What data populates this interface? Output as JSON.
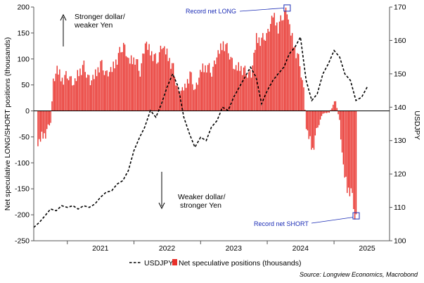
{
  "chart_data": {
    "type": "bar+line",
    "left_axis": {
      "label": "Net speculative LONG/SHORT positions (thousands)",
      "ylim": [
        -250,
        200
      ],
      "ticks": [
        -250,
        -200,
        -150,
        -100,
        -50,
        0,
        50,
        100,
        150,
        200
      ]
    },
    "right_axis": {
      "label": "USDJPY",
      "ylim": [
        100,
        170
      ],
      "ticks": [
        100,
        110,
        120,
        130,
        140,
        150,
        160,
        170
      ]
    },
    "x_axis": {
      "range": [
        "2020-07-01",
        "2025-11-01"
      ],
      "tick_labels": [
        "2021",
        "2022",
        "2023",
        "2024",
        "2025"
      ]
    },
    "grid": false,
    "bar_series": {
      "name": "Net speculative positions (thousands)",
      "color": "#e8302a",
      "anchors": [
        [
          "2020-07-24",
          -68
        ],
        [
          "2020-08-14",
          -48
        ],
        [
          "2020-09-04",
          -45
        ],
        [
          "2020-10-02",
          -20
        ],
        [
          "2020-10-16",
          55
        ],
        [
          "2020-11-06",
          80
        ],
        [
          "2020-12-04",
          60
        ],
        [
          "2021-01-08",
          68
        ],
        [
          "2021-02-05",
          50
        ],
        [
          "2021-03-05",
          75
        ],
        [
          "2021-04-02",
          85
        ],
        [
          "2021-05-07",
          55
        ],
        [
          "2021-06-04",
          70
        ],
        [
          "2021-07-02",
          90
        ],
        [
          "2021-08-06",
          70
        ],
        [
          "2021-09-03",
          80
        ],
        [
          "2021-10-01",
          100
        ],
        [
          "2021-11-05",
          128
        ],
        [
          "2021-12-03",
          95
        ],
        [
          "2022-01-07",
          100
        ],
        [
          "2022-02-04",
          75
        ],
        [
          "2022-03-04",
          130
        ],
        [
          "2022-04-01",
          115
        ],
        [
          "2022-05-06",
          95
        ],
        [
          "2022-06-03",
          125
        ],
        [
          "2022-07-01",
          110
        ],
        [
          "2022-08-05",
          80
        ],
        [
          "2022-09-02",
          35
        ],
        [
          "2022-10-07",
          45
        ],
        [
          "2022-11-04",
          70
        ],
        [
          "2022-12-02",
          40
        ],
        [
          "2023-01-06",
          80
        ],
        [
          "2023-02-03",
          85
        ],
        [
          "2023-03-03",
          75
        ],
        [
          "2023-04-07",
          110
        ],
        [
          "2023-05-05",
          130
        ],
        [
          "2023-06-02",
          115
        ],
        [
          "2023-07-07",
          80
        ],
        [
          "2023-08-04",
          85
        ],
        [
          "2023-09-01",
          75
        ],
        [
          "2023-10-06",
          70
        ],
        [
          "2023-11-03",
          140
        ],
        [
          "2023-12-01",
          135
        ],
        [
          "2024-01-05",
          150
        ],
        [
          "2024-02-02",
          185
        ],
        [
          "2024-03-01",
          160
        ],
        [
          "2024-04-05",
          190
        ],
        [
          "2024-04-19",
          192
        ],
        [
          "2024-05-03",
          160
        ],
        [
          "2024-05-31",
          120
        ],
        [
          "2024-06-28",
          90
        ],
        [
          "2024-07-19",
          40
        ],
        [
          "2024-08-02",
          -35
        ],
        [
          "2024-08-16",
          -50
        ],
        [
          "2024-09-06",
          -75
        ],
        [
          "2024-10-04",
          -30
        ],
        [
          "2024-11-01",
          -5
        ],
        [
          "2024-12-06",
          -3
        ],
        [
          "2025-01-10",
          20
        ],
        [
          "2025-01-31",
          -20
        ],
        [
          "2025-02-21",
          -110
        ],
        [
          "2025-03-14",
          -150
        ],
        [
          "2025-04-04",
          -155
        ],
        [
          "2025-04-25",
          -200
        ],
        [
          "2025-05-02",
          -202
        ]
      ]
    },
    "line_series": {
      "name": "USDJPY",
      "style": "dashed",
      "color": "#000000",
      "points": [
        [
          "2020-07-01",
          104
        ],
        [
          "2020-08-01",
          105.5
        ],
        [
          "2020-09-01",
          107.5
        ],
        [
          "2020-10-01",
          109.5
        ],
        [
          "2020-11-01",
          109
        ],
        [
          "2020-12-01",
          110.5
        ],
        [
          "2021-01-01",
          110
        ],
        [
          "2021-02-01",
          110.5
        ],
        [
          "2021-03-01",
          109.5
        ],
        [
          "2021-04-01",
          110.5
        ],
        [
          "2021-05-01",
          110
        ],
        [
          "2021-06-01",
          111
        ],
        [
          "2021-07-01",
          113
        ],
        [
          "2021-08-01",
          114.5
        ],
        [
          "2021-09-01",
          115
        ],
        [
          "2021-10-01",
          117
        ],
        [
          "2021-11-01",
          118
        ],
        [
          "2021-12-01",
          121
        ],
        [
          "2022-01-01",
          127
        ],
        [
          "2022-02-01",
          131
        ],
        [
          "2022-03-01",
          134
        ],
        [
          "2022-04-01",
          139
        ],
        [
          "2022-05-01",
          137
        ],
        [
          "2022-06-01",
          141
        ],
        [
          "2022-07-01",
          146
        ],
        [
          "2022-08-01",
          150
        ],
        [
          "2022-09-01",
          146
        ],
        [
          "2022-10-01",
          137
        ],
        [
          "2022-11-01",
          132
        ],
        [
          "2022-12-01",
          128
        ],
        [
          "2023-01-01",
          131
        ],
        [
          "2023-02-01",
          130
        ],
        [
          "2023-03-01",
          134
        ],
        [
          "2023-04-01",
          136
        ],
        [
          "2023-05-01",
          140
        ],
        [
          "2023-06-01",
          139
        ],
        [
          "2023-07-01",
          143
        ],
        [
          "2023-08-01",
          146
        ],
        [
          "2023-09-01",
          149
        ],
        [
          "2023-10-01",
          152
        ],
        [
          "2023-11-01",
          149
        ],
        [
          "2023-12-01",
          141
        ],
        [
          "2024-01-01",
          145
        ],
        [
          "2024-02-01",
          148
        ],
        [
          "2024-03-01",
          150
        ],
        [
          "2024-04-01",
          152
        ],
        [
          "2024-05-01",
          156
        ],
        [
          "2024-06-01",
          158
        ],
        [
          "2024-07-01",
          161
        ],
        [
          "2024-08-01",
          148
        ],
        [
          "2024-09-01",
          142
        ],
        [
          "2024-10-01",
          144
        ],
        [
          "2024-11-01",
          150
        ],
        [
          "2024-12-01",
          153
        ],
        [
          "2025-01-01",
          157
        ],
        [
          "2025-02-01",
          155
        ],
        [
          "2025-03-01",
          150
        ],
        [
          "2025-04-01",
          148
        ],
        [
          "2025-05-01",
          142
        ],
        [
          "2025-06-01",
          143
        ],
        [
          "2025-07-01",
          146
        ]
      ]
    },
    "annotations": {
      "up_arrow_text": [
        "Stronger dollar/",
        "weaker Yen"
      ],
      "down_arrow_text": [
        "Weaker dollar/",
        "stronger Yen"
      ],
      "record_long": {
        "text": "Record net LONG",
        "x": "2024-04-19",
        "y": 192
      },
      "record_short": {
        "text": "Record net SHORT",
        "x": "2025-05-02",
        "y": -202
      }
    },
    "legend": {
      "placement": "bottom-center",
      "line_label": "USDJPY",
      "bar_label": "Net speculative positions (thousands)"
    },
    "source": "Source: Longview Economics, Macrobond",
    "colors": {
      "bars": "#e8302a",
      "callout": "#1a2bb5",
      "axis": "#555555"
    }
  }
}
